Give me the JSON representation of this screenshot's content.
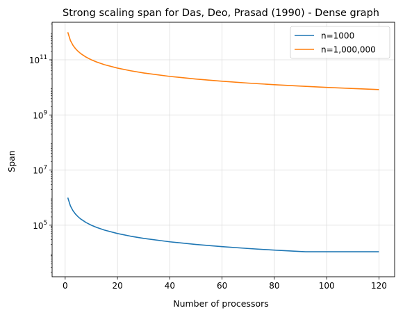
{
  "chart_data": {
    "type": "line",
    "title": "Strong scaling span for Das, Deo, Prasad  (1990) - Dense graph",
    "xlabel": "Number of processors",
    "ylabel": "Span",
    "xlim": [
      -5,
      126
    ],
    "ylim": [
      1350.0,
      2300000000000.0
    ],
    "yscale": "log",
    "grid": true,
    "legend_position": "upper right",
    "x_ticks": [
      {
        "value": 0,
        "label": "0"
      },
      {
        "value": 20,
        "label": "20"
      },
      {
        "value": 40,
        "label": "40"
      },
      {
        "value": 60,
        "label": "60"
      },
      {
        "value": 80,
        "label": "80"
      },
      {
        "value": 100,
        "label": "100"
      },
      {
        "value": 120,
        "label": "120"
      }
    ],
    "y_ticks": [
      {
        "value": 100000.0,
        "base": "10",
        "exp": "5"
      },
      {
        "value": 10000000.0,
        "base": "10",
        "exp": "7"
      },
      {
        "value": 1000000000.0,
        "base": "10",
        "exp": "9"
      },
      {
        "value": 100000000000.0,
        "base": "10",
        "exp": "11"
      }
    ],
    "series": [
      {
        "name": "n=1000",
        "color": "#1f77b4",
        "x": [
          1,
          2,
          3,
          4,
          5,
          6,
          8,
          10,
          12,
          15,
          20,
          25,
          30,
          40,
          50,
          60,
          70,
          80,
          90,
          92,
          100,
          110,
          120
        ],
        "y": [
          1000000,
          500000,
          333333,
          250000,
          200000,
          166667,
          125000,
          100000,
          83333,
          66667,
          50000,
          40000,
          33333,
          25000,
          20000,
          16667,
          14286,
          12500,
          11111,
          10869,
          10869,
          10869,
          10869
        ]
      },
      {
        "name": "n=1,000,000",
        "color": "#ff7f0e",
        "x": [
          1,
          2,
          3,
          4,
          5,
          6,
          8,
          10,
          12,
          15,
          20,
          25,
          30,
          40,
          50,
          60,
          70,
          80,
          90,
          100,
          110,
          120
        ],
        "y": [
          1000000000000.0,
          500000000000.0,
          333300000000.0,
          250000000000.0,
          200000000000.0,
          166700000000.0,
          125000000000.0,
          100000000000.0,
          83330000000.0,
          66670000000.0,
          50000000000.0,
          40000000000.0,
          33330000000.0,
          25000000000.0,
          20000000000.0,
          16670000000.0,
          14290000000.0,
          12500000000.0,
          11110000000.0,
          10000000000.0,
          9090000000.0,
          8333000000.0
        ]
      }
    ]
  }
}
